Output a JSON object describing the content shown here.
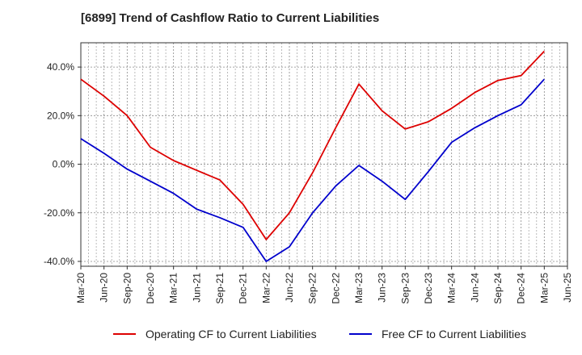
{
  "chart_data": {
    "type": "line",
    "title": "[6899]  Trend of Cashflow Ratio to Current Liabilities",
    "xlabel": "",
    "ylabel": "",
    "x_ticks": [
      "Mar-20",
      "Jun-20",
      "Sep-20",
      "Dec-20",
      "Mar-21",
      "Jun-21",
      "Sep-21",
      "Dec-21",
      "Mar-22",
      "Jun-22",
      "Sep-22",
      "Dec-22",
      "Mar-23",
      "Jun-23",
      "Sep-23",
      "Dec-23",
      "Mar-24",
      "Jun-24",
      "Sep-24",
      "Dec-24",
      "Mar-25",
      "Jun-25"
    ],
    "y_ticks": [
      {
        "value": 40,
        "label": "40.0%"
      },
      {
        "value": 20,
        "label": "20.0%"
      },
      {
        "value": 0,
        "label": "0.0%"
      },
      {
        "value": -20,
        "label": "-20.0%"
      },
      {
        "value": -40,
        "label": "-40.0%"
      }
    ],
    "ylim": [
      -42,
      50
    ],
    "grid": true,
    "legend_position": "bottom",
    "series": [
      {
        "name": "Operating CF to Current Liabilities",
        "color": "#dd0000",
        "points": [
          [
            "Mar-20",
            35
          ],
          [
            "Jun-20",
            28
          ],
          [
            "Sep-20",
            20
          ],
          [
            "Dec-20",
            7
          ],
          [
            "Mar-21",
            1.5
          ],
          [
            "Jun-21",
            -2.5
          ],
          [
            "Sep-21",
            -6.5
          ],
          [
            "Dec-21",
            -16.5
          ],
          [
            "Mar-22",
            -31
          ],
          [
            "Jun-22",
            -20
          ],
          [
            "Sep-22",
            -3.5
          ],
          [
            "Dec-22",
            15
          ],
          [
            "Mar-23",
            33
          ],
          [
            "Jun-23",
            22
          ],
          [
            "Sep-23",
            14.5
          ],
          [
            "Dec-23",
            17.5
          ],
          [
            "Mar-24",
            23
          ],
          [
            "Jun-24",
            29.5
          ],
          [
            "Sep-24",
            34.5
          ],
          [
            "Dec-24",
            36.5
          ],
          [
            "Mar-25",
            46.5
          ]
        ]
      },
      {
        "name": "Free CF to Current Liabilities",
        "color": "#0000cc",
        "points": [
          [
            "Mar-20",
            10.5
          ],
          [
            "Jun-20",
            4.5
          ],
          [
            "Sep-20",
            -2
          ],
          [
            "Dec-20",
            -7
          ],
          [
            "Mar-21",
            -12
          ],
          [
            "Jun-21",
            -18.5
          ],
          [
            "Sep-21",
            -22
          ],
          [
            "Dec-21",
            -26
          ],
          [
            "Mar-22",
            -40
          ],
          [
            "Jun-22",
            -34
          ],
          [
            "Sep-22",
            -20
          ],
          [
            "Dec-22",
            -9
          ],
          [
            "Mar-23",
            -0.5
          ],
          [
            "Jun-23",
            -7
          ],
          [
            "Sep-23",
            -14.5
          ],
          [
            "Dec-23",
            -3
          ],
          [
            "Mar-24",
            9
          ],
          [
            "Jun-24",
            15
          ],
          [
            "Sep-24",
            20
          ],
          [
            "Dec-24",
            24.5
          ],
          [
            "Mar-25",
            35
          ]
        ]
      }
    ]
  }
}
